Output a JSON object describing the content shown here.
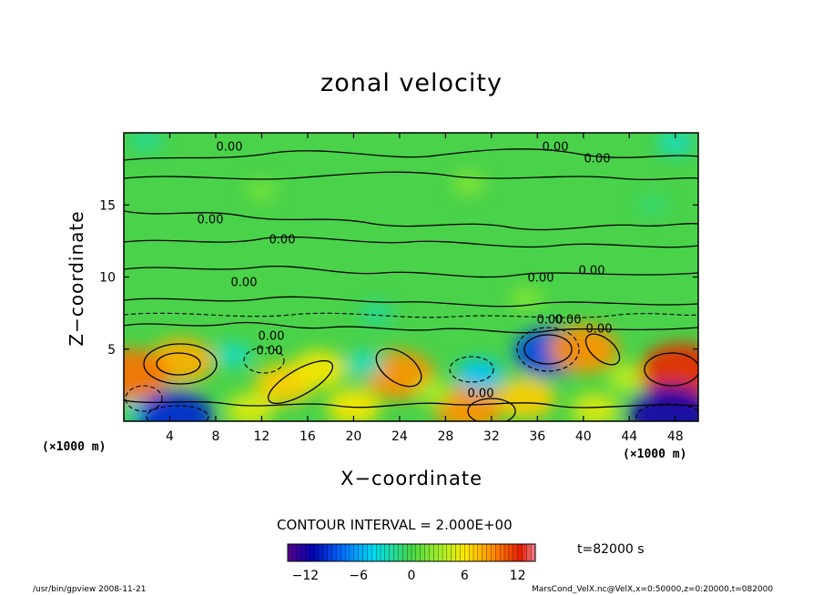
{
  "chart_data": {
    "type": "heatmap",
    "title": "zonal velocity",
    "xlabel": "X−coordinate",
    "ylabel": "Z−coordinate",
    "x_unit_left": "(×1000 m)",
    "x_unit_right": "(×1000 m)",
    "xlim": [
      0,
      50
    ],
    "ylim": [
      0,
      20
    ],
    "x_ticks": [
      4,
      8,
      12,
      16,
      20,
      24,
      28,
      32,
      36,
      40,
      44,
      48
    ],
    "y_ticks": [
      5,
      10,
      15
    ],
    "contour_labels": [
      "0.00",
      "0.00",
      "0.00",
      "0.00",
      "0.00",
      "0.00",
      "0.00",
      "0.00",
      "0.00",
      "0.00",
      "0.00",
      "0.00",
      "0.00",
      "0.00"
    ],
    "colorbar": {
      "min": -14,
      "max": 14,
      "ticks": [
        "−12",
        "−6",
        "0",
        "6",
        "12"
      ],
      "tick_values": [
        -12,
        -6,
        0,
        6,
        12
      ]
    },
    "field_features": [
      {
        "x": 5,
        "z": 4.2,
        "value": 8
      },
      {
        "x": 2,
        "z": 1.0,
        "value": -4
      },
      {
        "x": 9.5,
        "z": 4.6,
        "value": -3
      },
      {
        "x": 14,
        "z": 2.6,
        "value": 7
      },
      {
        "x": 17,
        "z": 3.6,
        "value": 6
      },
      {
        "x": 11,
        "z": 0.8,
        "value": 5
      },
      {
        "x": 24,
        "z": 3.2,
        "value": 9
      },
      {
        "x": 20,
        "z": 1.0,
        "value": 6
      },
      {
        "x": 21,
        "z": 4.0,
        "value": -3
      },
      {
        "x": 30,
        "z": 1.0,
        "value": 9
      },
      {
        "x": 31,
        "z": 3.2,
        "value": -5
      },
      {
        "x": 27,
        "z": 2.0,
        "value": 3
      },
      {
        "x": 37,
        "z": 4.8,
        "value": -9
      },
      {
        "x": 35,
        "z": 1.6,
        "value": 7
      },
      {
        "x": 40,
        "z": 5.0,
        "value": 9
      },
      {
        "x": 44,
        "z": 3.0,
        "value": 4
      },
      {
        "x": 48.5,
        "z": 3.4,
        "value": 12
      },
      {
        "x": 47.5,
        "z": 0.5,
        "value": -12
      },
      {
        "x": 4.5,
        "z": 0.3,
        "value": -10
      },
      {
        "x": 0.6,
        "z": 3.2,
        "value": 10
      },
      {
        "x": 41,
        "z": 0.8,
        "value": 5
      },
      {
        "x": 35,
        "z": 8.5,
        "value": 2
      },
      {
        "x": 12,
        "z": 16,
        "value": 1.5
      },
      {
        "x": 30,
        "z": 16.5,
        "value": 2
      },
      {
        "x": 46,
        "z": 15,
        "value": -1
      },
      {
        "x": 2,
        "z": 19.5,
        "value": -2
      },
      {
        "x": 48,
        "z": 19.3,
        "value": -3
      },
      {
        "x": 22,
        "z": 7.5,
        "value": -2
      }
    ]
  },
  "contour_interval": "CONTOUR INTERVAL = 2.000E+00",
  "time_label": "t=82000 s",
  "footer_left": "/usr/bin/gpview  2008-11-21",
  "footer_right": "MarsCond_VelX.nc@VelX,x=0:50000,z=0:20000,t=082000",
  "colors": {
    "background": "#ffffff",
    "frame": "#000000"
  }
}
